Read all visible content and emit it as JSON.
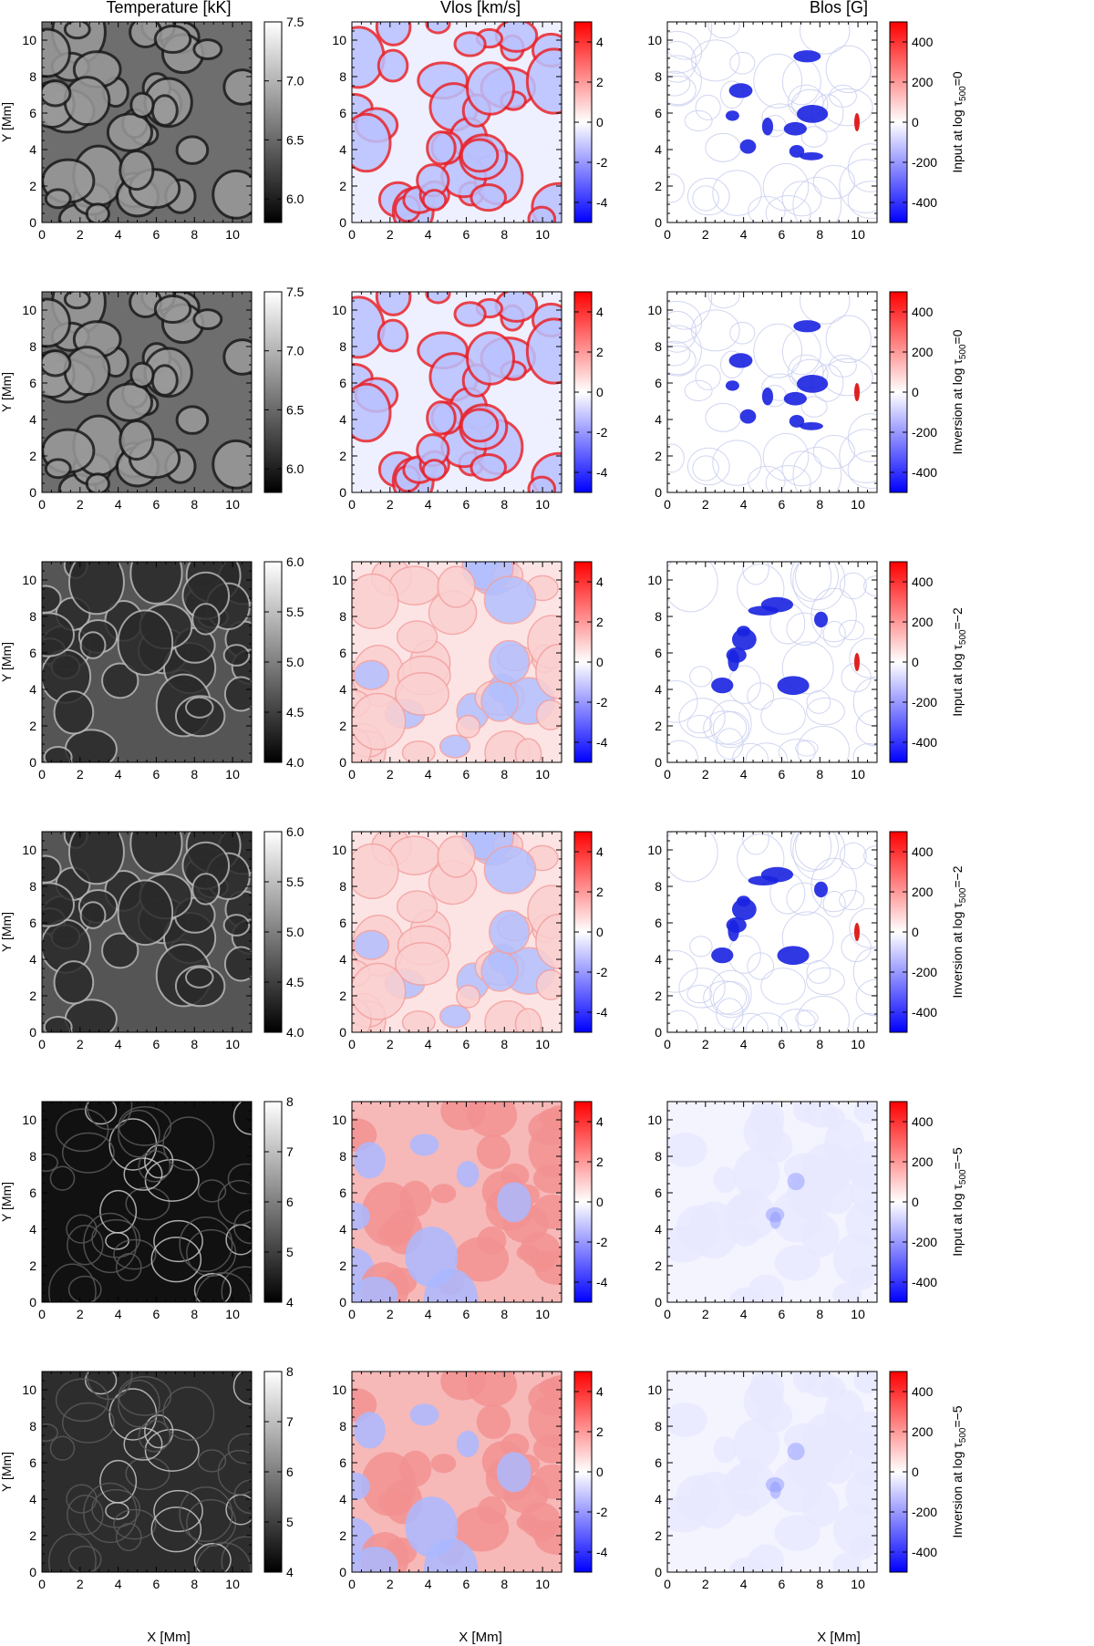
{
  "columns": [
    {
      "title": "Temperature [kK]"
    },
    {
      "title": "Vlos [km/s]"
    },
    {
      "title": "Blos [G]"
    }
  ],
  "row_labels": [
    {
      "prefix": "Input at log τ",
      "sub": "500",
      "suffix": "=0"
    },
    {
      "prefix": "Inversion at log τ",
      "sub": "500",
      "suffix": "=0"
    },
    {
      "prefix": "Input at log τ",
      "sub": "500",
      "suffix": "=−2"
    },
    {
      "prefix": "Inversion at log τ",
      "sub": "500",
      "suffix": "=−2"
    },
    {
      "prefix": "Input at log τ",
      "sub": "500",
      "suffix": "=−5"
    },
    {
      "prefix": "Inversion at log τ",
      "sub": "500",
      "suffix": "=−5"
    }
  ],
  "axes": {
    "xlabel": "X [Mm]",
    "ylabel": "Y [Mm]",
    "xticks": [
      "0",
      "2",
      "4",
      "6",
      "8",
      "10"
    ],
    "yticks": [
      "0",
      "2",
      "4",
      "6",
      "8",
      "10"
    ]
  },
  "colorbars": {
    "temp_tau0": [
      "6.0",
      "6.5",
      "7.0",
      "7.5"
    ],
    "temp_tau2": [
      "4.0",
      "4.5",
      "5.0",
      "5.5",
      "6.0"
    ],
    "temp_tau5": [
      "4",
      "5",
      "6",
      "7",
      "8"
    ],
    "vlos": [
      "-4",
      "-2",
      "0",
      "2",
      "4"
    ],
    "blos": [
      "-400",
      "-200",
      "0",
      "200",
      "400"
    ]
  },
  "chart_data": {
    "type": "heatmap",
    "panels_grid": "6 rows × 3 columns",
    "x_range_Mm": [
      0,
      11
    ],
    "y_range_Mm": [
      0,
      11
    ],
    "colormaps": {
      "temperature": "grayscale",
      "vlos": "blue-white-red",
      "blos": "blue-white-red"
    },
    "colorbar_ranges": {
      "temp_tau0": [
        5.8,
        7.5
      ],
      "temp_tau2": [
        4.0,
        6.0
      ],
      "temp_tau5": [
        4,
        8
      ],
      "vlos": [
        -5,
        5
      ],
      "blos": [
        -500,
        500
      ]
    },
    "colors": {
      "negative": "#0000ff",
      "zero": "#ffffff",
      "positive": "#ff0000"
    }
  }
}
